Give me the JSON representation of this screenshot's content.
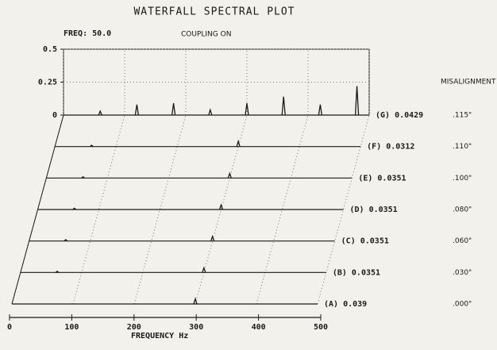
{
  "chart_data": {
    "type": "waterfall",
    "title": "WATERFALL SPECTRAL PLOT",
    "annotations": {
      "freq": "FREQ: 50.0",
      "coupling": "COUPLING ON"
    },
    "x_label": "FREQUENCY Hz",
    "legend_title": "MISALIGNMENT",
    "color": "#1a1a1a",
    "xlim": [
      0,
      500
    ],
    "xticks": [
      0,
      100,
      200,
      300,
      400,
      500
    ],
    "ylim": [
      0,
      0.5
    ],
    "yticks": [
      0,
      0.25,
      0.5
    ],
    "grid": true,
    "series": [
      {
        "name": "(A) 0.039",
        "misalignment": ".000\"",
        "x": [
          300
        ],
        "values": [
          0.04
        ]
      },
      {
        "name": "(B) 0.0351",
        "misalignment": ".030\"",
        "x": [
          60,
          300
        ],
        "values": [
          0.01,
          0.035
        ]
      },
      {
        "name": "(C) 0.0351",
        "misalignment": ".060\"",
        "x": [
          60,
          300
        ],
        "values": [
          0.01,
          0.035
        ]
      },
      {
        "name": "(D) 0.0351",
        "misalignment": ".080\"",
        "x": [
          60,
          300
        ],
        "values": [
          0.01,
          0.035
        ]
      },
      {
        "name": "(E) 0.0351",
        "misalignment": ".100\"",
        "x": [
          60,
          300
        ],
        "values": [
          0.01,
          0.035
        ]
      },
      {
        "name": "(F) 0.0312",
        "misalignment": ".110\"",
        "x": [
          60,
          300
        ],
        "values": [
          0.01,
          0.04
        ]
      },
      {
        "name": "(G) 0.0429",
        "misalignment": ".115\"",
        "x": [
          60,
          120,
          180,
          240,
          300,
          360,
          420,
          480
        ],
        "values": [
          0.03,
          0.08,
          0.09,
          0.04,
          0.09,
          0.14,
          0.08,
          0.22
        ]
      }
    ]
  }
}
